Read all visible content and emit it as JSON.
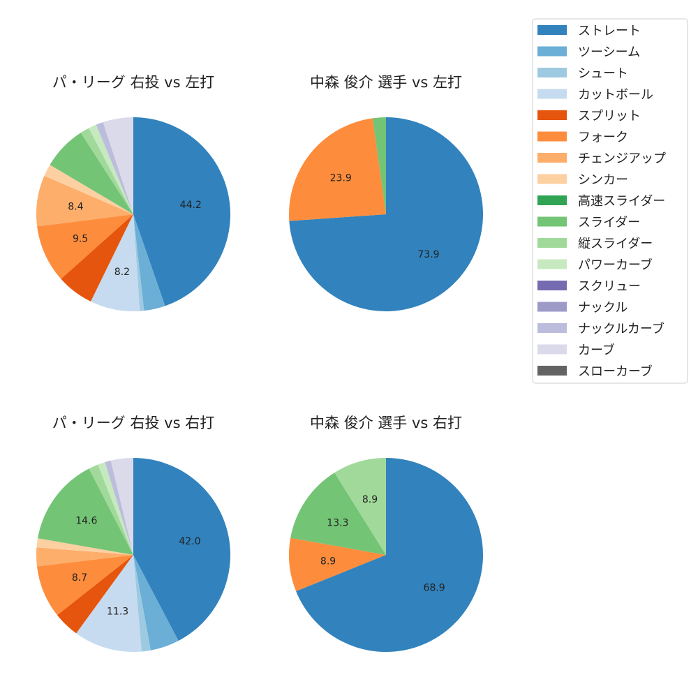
{
  "legend": {
    "items": [
      {
        "label": "ストレート",
        "color": "#3182bd"
      },
      {
        "label": "ツーシーム",
        "color": "#6baed6"
      },
      {
        "label": "シュート",
        "color": "#9ecae1"
      },
      {
        "label": "カットボール",
        "color": "#c6dbef"
      },
      {
        "label": "スプリット",
        "color": "#e6550d"
      },
      {
        "label": "フォーク",
        "color": "#fd8d3c"
      },
      {
        "label": "チェンジアップ",
        "color": "#fdae6b"
      },
      {
        "label": "シンカー",
        "color": "#fdd0a2"
      },
      {
        "label": "高速スライダー",
        "color": "#31a354"
      },
      {
        "label": "スライダー",
        "color": "#74c476"
      },
      {
        "label": "縦スライダー",
        "color": "#a1d99b"
      },
      {
        "label": "パワーカーブ",
        "color": "#c7e9c0"
      },
      {
        "label": "スクリュー",
        "color": "#756bb1"
      },
      {
        "label": "ナックル",
        "color": "#9e9ac8"
      },
      {
        "label": "ナックルカーブ",
        "color": "#bcbddc"
      },
      {
        "label": "カーブ",
        "color": "#dadaeb"
      },
      {
        "label": "スローカーブ",
        "color": "#636363"
      }
    ]
  },
  "chart_data": [
    {
      "type": "pie",
      "title": "パ・リーグ 右投 vs 左打",
      "slices": [
        {
          "category": "ストレート",
          "value": 44.2,
          "label": "44.2"
        },
        {
          "category": "ツーシーム",
          "value": 3.5,
          "label": ""
        },
        {
          "category": "シュート",
          "value": 0.7,
          "label": ""
        },
        {
          "category": "カットボール",
          "value": 8.2,
          "label": "8.2"
        },
        {
          "category": "スプリット",
          "value": 6.1,
          "label": ""
        },
        {
          "category": "フォーク",
          "value": 9.5,
          "label": "9.5"
        },
        {
          "category": "チェンジアップ",
          "value": 8.4,
          "label": "8.4"
        },
        {
          "category": "シンカー",
          "value": 2.0,
          "label": ""
        },
        {
          "category": "スライダー",
          "value": 7.3,
          "label": ""
        },
        {
          "category": "縦スライダー",
          "value": 1.5,
          "label": ""
        },
        {
          "category": "パワーカーブ",
          "value": 1.3,
          "label": ""
        },
        {
          "category": "ナックルカーブ",
          "value": 1.2,
          "label": ""
        },
        {
          "category": "カーブ",
          "value": 5.0,
          "label": ""
        }
      ]
    },
    {
      "type": "pie",
      "title": "中森 俊介 選手 vs 左打",
      "slices": [
        {
          "category": "ストレート",
          "value": 73.9,
          "label": "73.9"
        },
        {
          "category": "フォーク",
          "value": 23.9,
          "label": "23.9"
        },
        {
          "category": "スライダー",
          "value": 2.2,
          "label": ""
        }
      ]
    },
    {
      "type": "pie",
      "title": "パ・リーグ 右投 vs 右打",
      "slices": [
        {
          "category": "ストレート",
          "value": 42.0,
          "label": "42.0"
        },
        {
          "category": "ツーシーム",
          "value": 4.8,
          "label": ""
        },
        {
          "category": "シュート",
          "value": 1.5,
          "label": ""
        },
        {
          "category": "カットボール",
          "value": 11.3,
          "label": "11.3"
        },
        {
          "category": "スプリット",
          "value": 4.3,
          "label": ""
        },
        {
          "category": "フォーク",
          "value": 8.7,
          "label": "8.7"
        },
        {
          "category": "チェンジアップ",
          "value": 3.1,
          "label": ""
        },
        {
          "category": "シンカー",
          "value": 1.5,
          "label": ""
        },
        {
          "category": "スライダー",
          "value": 14.6,
          "label": "14.6"
        },
        {
          "category": "縦スライダー",
          "value": 1.6,
          "label": ""
        },
        {
          "category": "パワーカーブ",
          "value": 1.2,
          "label": ""
        },
        {
          "category": "ナックルカーブ",
          "value": 1.0,
          "label": ""
        },
        {
          "category": "カーブ",
          "value": 3.7,
          "label": ""
        }
      ]
    },
    {
      "type": "pie",
      "title": "中森 俊介 選手 vs 右打",
      "slices": [
        {
          "category": "ストレート",
          "value": 68.9,
          "label": "68.9"
        },
        {
          "category": "フォーク",
          "value": 8.9,
          "label": "8.9"
        },
        {
          "category": "スライダー",
          "value": 13.3,
          "label": "13.3"
        },
        {
          "category": "縦スライダー",
          "value": 8.9,
          "label": "8.9"
        }
      ]
    }
  ]
}
